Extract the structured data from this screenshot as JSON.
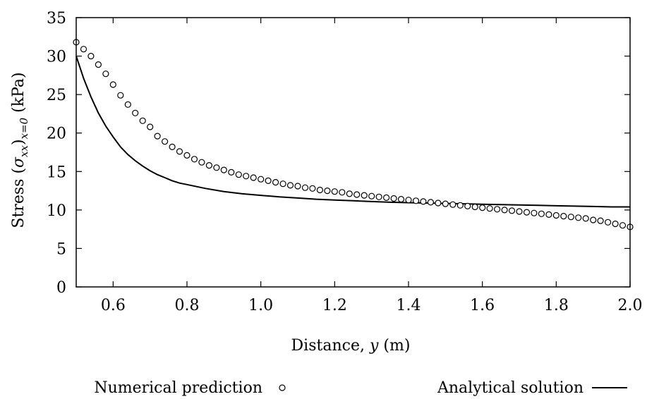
{
  "chart_data": {
    "type": "line",
    "xlabel": {
      "prefix": "Distance, ",
      "var": "y",
      "suffix": " (m)"
    },
    "ylabel": {
      "prefix": "Stress (",
      "sigma": "σ",
      "sigma_sub": "xx",
      "close": ")",
      "eval_sub": "x=0",
      "suffix": " (kPa)"
    },
    "xlim": [
      0.5,
      2.0
    ],
    "ylim": [
      0,
      35
    ],
    "xticks": [
      0.6,
      0.8,
      1.0,
      1.2,
      1.4,
      1.6,
      1.8,
      2.0
    ],
    "xtick_labels": [
      "0.6",
      "0.8",
      "1.0",
      "1.2",
      "1.4",
      "1.6",
      "1.8",
      "2.0"
    ],
    "yticks": [
      0,
      5,
      10,
      15,
      20,
      25,
      30,
      35
    ],
    "ytick_labels": [
      "0",
      "5",
      "10",
      "15",
      "20",
      "25",
      "30",
      "35"
    ],
    "grid": false,
    "legend_position": "bottom",
    "series": [
      {
        "name": "Numerical prediction",
        "style": "markers",
        "marker": "open-circle",
        "x": [
          0.5,
          0.52,
          0.54,
          0.56,
          0.58,
          0.6,
          0.62,
          0.64,
          0.66,
          0.68,
          0.7,
          0.72,
          0.74,
          0.76,
          0.78,
          0.8,
          0.82,
          0.84,
          0.86,
          0.88,
          0.9,
          0.92,
          0.94,
          0.96,
          0.98,
          1.0,
          1.02,
          1.04,
          1.06,
          1.08,
          1.1,
          1.12,
          1.14,
          1.16,
          1.18,
          1.2,
          1.22,
          1.24,
          1.26,
          1.28,
          1.3,
          1.32,
          1.34,
          1.36,
          1.38,
          1.4,
          1.42,
          1.44,
          1.46,
          1.48,
          1.5,
          1.52,
          1.54,
          1.56,
          1.58,
          1.6,
          1.62,
          1.64,
          1.66,
          1.68,
          1.7,
          1.72,
          1.74,
          1.76,
          1.78,
          1.8,
          1.82,
          1.84,
          1.86,
          1.88,
          1.9,
          1.92,
          1.94,
          1.96,
          1.98,
          2.0
        ],
        "y": [
          31.8,
          30.9,
          30.0,
          28.9,
          27.7,
          26.3,
          24.9,
          23.7,
          22.6,
          21.6,
          20.8,
          19.6,
          18.9,
          18.2,
          17.6,
          17.1,
          16.6,
          16.2,
          15.8,
          15.5,
          15.2,
          14.9,
          14.6,
          14.4,
          14.2,
          14.0,
          13.8,
          13.6,
          13.4,
          13.2,
          13.1,
          12.9,
          12.8,
          12.6,
          12.5,
          12.4,
          12.3,
          12.1,
          12.0,
          11.9,
          11.8,
          11.7,
          11.6,
          11.5,
          11.4,
          11.3,
          11.2,
          11.1,
          11.0,
          10.9,
          10.8,
          10.7,
          10.6,
          10.5,
          10.4,
          10.3,
          10.2,
          10.1,
          10.0,
          9.9,
          9.8,
          9.7,
          9.6,
          9.5,
          9.4,
          9.3,
          9.2,
          9.1,
          9.0,
          8.9,
          8.7,
          8.6,
          8.4,
          8.2,
          8.0,
          7.8
        ]
      },
      {
        "name": "Analytical solution",
        "style": "line",
        "x": [
          0.5,
          0.52,
          0.54,
          0.56,
          0.58,
          0.6,
          0.62,
          0.64,
          0.66,
          0.68,
          0.7,
          0.72,
          0.74,
          0.76,
          0.78,
          0.8,
          0.85,
          0.9,
          0.95,
          1.0,
          1.05,
          1.1,
          1.15,
          1.2,
          1.25,
          1.3,
          1.35,
          1.4,
          1.45,
          1.5,
          1.55,
          1.6,
          1.65,
          1.7,
          1.75,
          1.8,
          1.85,
          1.9,
          1.95,
          2.0
        ],
        "y": [
          30.0,
          27.1,
          24.7,
          22.6,
          20.9,
          19.5,
          18.2,
          17.2,
          16.4,
          15.7,
          15.1,
          14.6,
          14.2,
          13.8,
          13.5,
          13.3,
          12.8,
          12.4,
          12.1,
          11.9,
          11.7,
          11.55,
          11.4,
          11.3,
          11.2,
          11.1,
          11.0,
          10.95,
          10.9,
          10.85,
          10.8,
          10.75,
          10.7,
          10.65,
          10.6,
          10.55,
          10.5,
          10.45,
          10.4,
          10.4
        ]
      }
    ]
  }
}
